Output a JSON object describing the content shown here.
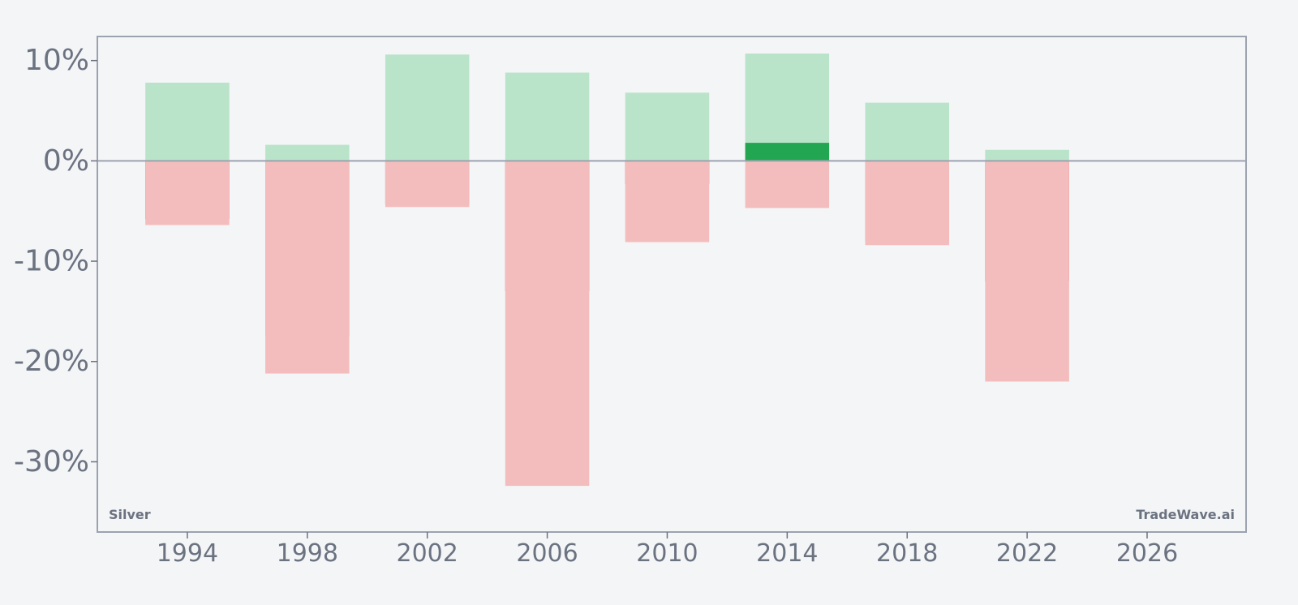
{
  "chart_data": {
    "type": "bar",
    "x_ticks": [
      1994,
      1998,
      2002,
      2006,
      2010,
      2014,
      2018,
      2022,
      2026
    ],
    "y_ticks": [
      10,
      0,
      -10,
      -20,
      -30
    ],
    "y_tick_suffix": "%",
    "xlim": [
      1991,
      2029.3
    ],
    "ylim": [
      -37,
      12.4
    ],
    "grid": false,
    "series": [
      {
        "role": "high",
        "color": "#b9e4c9",
        "values": [
          7.8,
          1.6,
          10.6,
          8.8,
          6.8,
          10.7,
          5.8,
          1.1
        ]
      },
      {
        "role": "close_up",
        "color": "#22a652",
        "values": [
          null,
          null,
          null,
          null,
          null,
          1.8,
          null,
          null
        ]
      },
      {
        "role": "close_down",
        "color": "#dc3030",
        "values": [
          -5.8,
          -17.5,
          -4.3,
          -13.0,
          -2.3,
          null,
          -8.0,
          -12.0
        ]
      },
      {
        "role": "low",
        "color": "#f4bdbd",
        "values": [
          -6.4,
          -21.2,
          -4.6,
          -32.4,
          -8.1,
          -4.7,
          -8.4,
          -22.0
        ]
      }
    ],
    "categories": [
      1994,
      1998,
      2002,
      2006,
      2010,
      2014,
      2018,
      2022
    ],
    "bar_width_years": 2.8,
    "axis_color": "#9ca3af",
    "tick_color": "#6b7280"
  },
  "labels": {
    "asset": "Silver",
    "brand": "TradeWave.ai"
  }
}
